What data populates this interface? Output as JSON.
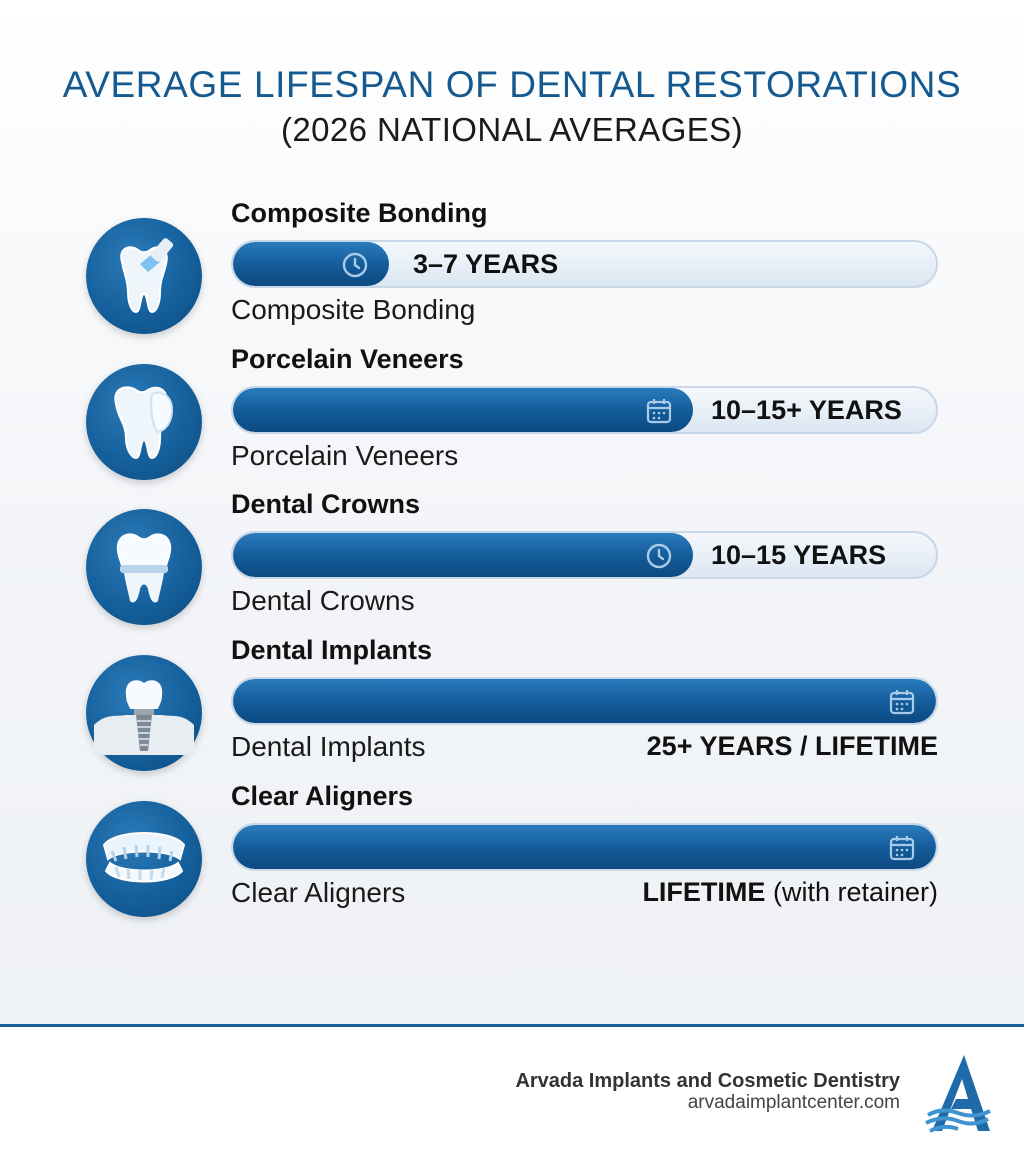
{
  "title": "AVERAGE LIFESPAN OF DENTAL RESTORATIONS",
  "subtitle": "(2026 NATIONAL AVERAGES)",
  "colors": {
    "title": "#14598f",
    "bar_fill": "#135a98",
    "bar_track": "#dce7f2",
    "footer_line": "#1a5f96"
  },
  "chart_data": {
    "type": "bar",
    "orientation": "horizontal",
    "title": "AVERAGE LIFESPAN OF DENTAL RESTORATIONS",
    "subtitle": "(2026 NATIONAL AVERAGES)",
    "categories": [
      "Composite Bonding",
      "Porcelain Veneers",
      "Dental Crowns",
      "Dental Implants",
      "Clear Aligners"
    ],
    "series": [
      {
        "values": [
          0.22,
          0.65,
          0.65,
          1.0,
          1.0
        ]
      }
    ],
    "value_labels": [
      "3–7 YEARS",
      "10–15+ YEARS",
      "10–15 YEARS",
      "25+ YEARS / LIFETIME",
      "LIFETIME (with retainer)"
    ],
    "grid": false,
    "legend": "none"
  },
  "rows": [
    {
      "label": "Composite Bonding",
      "sub": "Composite Bonding",
      "fill": 0.22,
      "value": "3–7 YEARS",
      "value_pos": "inside",
      "icon": "clock-icon",
      "graphic": "tooth-bonding-icon"
    },
    {
      "label": "Porcelain Veneers",
      "sub": "Porcelain Veneers",
      "fill": 0.65,
      "value": "10–15+ YEARS",
      "value_pos": "inside",
      "icon": "calendar-icon",
      "graphic": "tooth-veneer-icon"
    },
    {
      "label": "Dental Crowns",
      "sub": "Dental Crowns",
      "fill": 0.65,
      "value": "10–15 YEARS",
      "value_pos": "inside",
      "icon": "clock-icon",
      "graphic": "tooth-crown-icon"
    },
    {
      "label": "Dental Implants",
      "sub": "Dental Implants",
      "fill": 1.0,
      "value": "25+ YEARS / LIFETIME",
      "value_pos": "below",
      "icon": "calendar-icon",
      "graphic": "dental-implant-icon"
    },
    {
      "label": "Clear Aligners",
      "sub": "Clear Aligners",
      "fill": 1.0,
      "value": "LIFETIME",
      "value_suffix": "(with retainer)",
      "value_pos": "below",
      "icon": "calendar-icon",
      "graphic": "clear-aligners-icon"
    }
  ],
  "footer": {
    "brand": "Arvada Implants and Cosmetic Dentistry",
    "url": "arvadaimplantcenter.com"
  }
}
